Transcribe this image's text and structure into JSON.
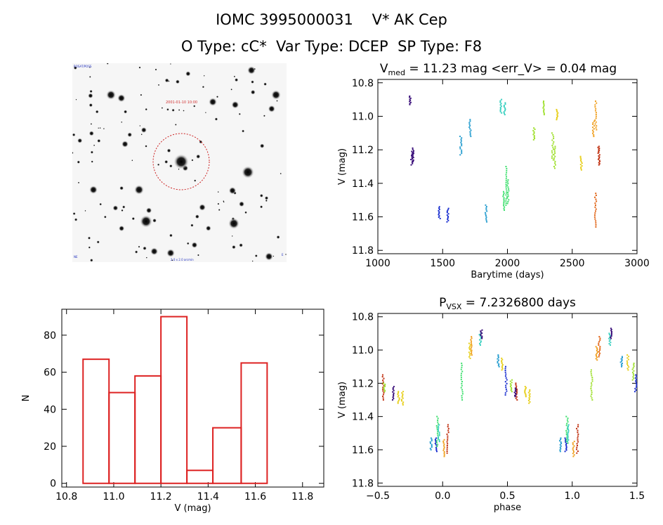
{
  "header": {
    "line1": "IOMC 3995000031    V* AK Cep",
    "line2": "O Type: cC*  Var Type: DCEP  SP Type: F8"
  },
  "thumbnail": {
    "red_label": "2001-01-10 10:00",
    "blue_tl": "ROSAT/POSS",
    "blue_bottom": "2.0 x 2.0 arcmin",
    "blue_bl": "NE",
    "compass_n": "N",
    "compass_e": "E"
  },
  "colors": {
    "axes": "#000000",
    "hist": "#dd2222",
    "circle": "#cc2222",
    "palette": [
      "#3a0f7a",
      "#1a2fd0",
      "#2a9fd0",
      "#3ad0c0",
      "#40e070",
      "#a0e030",
      "#e8d020",
      "#f0a020",
      "#e06010",
      "#c03010"
    ]
  },
  "chart_data": [
    {
      "type": "scatter",
      "id": "lightcurve",
      "title_main": "V",
      "title_sub": "med",
      "title_rest": " = 11.23 mag <err_V> = 0.04 mag",
      "xlabel": "Barytime (days)",
      "ylabel": "V (mag)",
      "xlim": [
        1000,
        3000
      ],
      "ylim": [
        11.82,
        10.78
      ],
      "xticks": [
        1000,
        1500,
        2000,
        2500,
        3000
      ],
      "xticklabels": [
        "1000",
        "1500",
        "2000",
        "2500",
        "3000"
      ],
      "yticks": [
        10.8,
        11.0,
        11.2,
        11.4,
        11.6,
        11.8
      ],
      "yticklabels": [
        "10.8",
        "11.0",
        "11.2",
        "11.4",
        "11.6",
        "11.8"
      ],
      "groups": [
        {
          "x": 1248,
          "ymin": 10.88,
          "ymax": 10.93,
          "c": 0
        },
        {
          "x": 1262,
          "ymin": 11.21,
          "ymax": 11.29,
          "c": 0
        },
        {
          "x": 1272,
          "ymin": 11.19,
          "ymax": 11.27,
          "c": 0
        },
        {
          "x": 1475,
          "ymin": 11.54,
          "ymax": 11.61,
          "c": 1
        },
        {
          "x": 1540,
          "ymin": 11.55,
          "ymax": 11.63,
          "c": 1
        },
        {
          "x": 1640,
          "ymin": 11.12,
          "ymax": 11.23,
          "c": 2
        },
        {
          "x": 1712,
          "ymin": 11.02,
          "ymax": 11.12,
          "c": 2
        },
        {
          "x": 1835,
          "ymin": 11.53,
          "ymax": 11.63,
          "c": 2
        },
        {
          "x": 1950,
          "ymin": 10.9,
          "ymax": 10.98,
          "c": 3
        },
        {
          "x": 1978,
          "ymin": 10.92,
          "ymax": 10.99,
          "c": 3
        },
        {
          "x": 1970,
          "ymin": 11.45,
          "ymax": 11.56,
          "c": 4
        },
        {
          "x": 1995,
          "ymin": 11.3,
          "ymax": 11.53,
          "c": 4
        },
        {
          "x": 2005,
          "ymin": 11.38,
          "ymax": 11.52,
          "c": 4
        },
        {
          "x": 2205,
          "ymin": 11.07,
          "ymax": 11.14,
          "c": 5
        },
        {
          "x": 2278,
          "ymin": 10.91,
          "ymax": 10.99,
          "c": 5
        },
        {
          "x": 2350,
          "ymin": 11.1,
          "ymax": 11.26,
          "c": 5
        },
        {
          "x": 2365,
          "ymin": 11.18,
          "ymax": 11.31,
          "c": 5
        },
        {
          "x": 2385,
          "ymin": 10.96,
          "ymax": 11.02,
          "c": 6
        },
        {
          "x": 2570,
          "ymin": 11.24,
          "ymax": 11.32,
          "c": 6
        },
        {
          "x": 2665,
          "ymin": 11.03,
          "ymax": 11.12,
          "c": 7
        },
        {
          "x": 2682,
          "ymin": 10.91,
          "ymax": 11.08,
          "c": 7
        },
        {
          "x": 2680,
          "ymin": 11.46,
          "ymax": 11.66,
          "c": 8
        },
        {
          "x": 2705,
          "ymin": 11.18,
          "ymax": 11.22,
          "c": 9
        },
        {
          "x": 2708,
          "ymin": 11.23,
          "ymax": 11.29,
          "c": 9
        }
      ]
    },
    {
      "type": "bar",
      "id": "histogram",
      "xlabel": "V (mag)",
      "ylabel": "N",
      "xlim": [
        10.78,
        11.89
      ],
      "ylim": [
        -2,
        94
      ],
      "xticks": [
        10.8,
        11.0,
        11.2,
        11.4,
        11.6,
        11.8
      ],
      "xticklabels": [
        "10.8",
        "11.0",
        "11.2",
        "11.4",
        "11.6",
        "11.8"
      ],
      "yticks": [
        0,
        20,
        40,
        60,
        80
      ],
      "yticklabels": [
        "0",
        "20",
        "40",
        "60",
        "80"
      ],
      "bin_edges": [
        10.87,
        10.98,
        11.09,
        11.2,
        11.31,
        11.42,
        11.54,
        11.65
      ],
      "values": [
        67,
        49,
        58,
        90,
        7,
        30,
        65
      ]
    },
    {
      "type": "scatter",
      "id": "phased",
      "title_main": "P",
      "title_sub": "VSX",
      "title_rest": " = 7.2326800 days",
      "xlabel": "phase",
      "ylabel": "V (mag)",
      "xlim": [
        -0.5,
        1.5
      ],
      "ylim": [
        11.82,
        10.78
      ],
      "xticks": [
        -0.5,
        0.0,
        0.5,
        1.0,
        1.5
      ],
      "xticklabels": [
        "−0.5",
        "0.0",
        "0.5",
        "1.0",
        "1.5"
      ],
      "yticks": [
        10.8,
        11.0,
        11.2,
        11.4,
        11.6,
        11.8
      ],
      "yticklabels": [
        "10.8",
        "11.0",
        "11.2",
        "11.4",
        "11.6",
        "11.8"
      ],
      "groups": [
        {
          "x": -0.46,
          "ymin": 11.15,
          "ymax": 11.3,
          "c": 9
        },
        {
          "x": -0.45,
          "ymin": 11.2,
          "ymax": 11.25,
          "c": 5
        },
        {
          "x": -0.38,
          "ymin": 11.22,
          "ymax": 11.3,
          "c": 0
        },
        {
          "x": -0.34,
          "ymin": 11.25,
          "ymax": 11.32,
          "c": 6
        },
        {
          "x": -0.31,
          "ymin": 11.25,
          "ymax": 11.33,
          "c": 6
        },
        {
          "x": -0.09,
          "ymin": 11.53,
          "ymax": 11.6,
          "c": 2
        },
        {
          "x": -0.05,
          "ymin": 11.53,
          "ymax": 11.61,
          "c": 1
        },
        {
          "x": -0.04,
          "ymin": 11.4,
          "ymax": 11.58,
          "c": 4
        },
        {
          "x": -0.03,
          "ymin": 11.45,
          "ymax": 11.55,
          "c": 3
        },
        {
          "x": 0.01,
          "ymin": 11.54,
          "ymax": 11.64,
          "c": 7
        },
        {
          "x": 0.04,
          "ymin": 11.45,
          "ymax": 11.62,
          "c": 9
        },
        {
          "x": 0.15,
          "ymin": 11.08,
          "ymax": 11.3,
          "c": 4
        },
        {
          "x": 0.21,
          "ymin": 10.96,
          "ymax": 11.05,
          "c": 6
        },
        {
          "x": 0.22,
          "ymin": 10.92,
          "ymax": 11.03,
          "c": 7
        },
        {
          "x": 0.29,
          "ymin": 10.9,
          "ymax": 10.97,
          "c": 3
        },
        {
          "x": 0.3,
          "ymin": 10.88,
          "ymax": 10.93,
          "c": 0
        },
        {
          "x": 0.43,
          "ymin": 11.03,
          "ymax": 11.1,
          "c": 2
        },
        {
          "x": 0.46,
          "ymin": 11.05,
          "ymax": 11.12,
          "c": 6
        },
        {
          "x": 0.49,
          "ymin": 11.1,
          "ymax": 11.27,
          "c": 1
        },
        {
          "x": 0.53,
          "ymin": 11.18,
          "ymax": 11.25,
          "c": 5
        },
        {
          "x": 0.57,
          "ymin": 11.2,
          "ymax": 11.3,
          "c": 9
        },
        {
          "x": 0.56,
          "ymin": 11.23,
          "ymax": 11.28,
          "c": 0
        },
        {
          "x": 0.64,
          "ymin": 11.22,
          "ymax": 11.28,
          "c": 6
        },
        {
          "x": 0.67,
          "ymin": 11.24,
          "ymax": 11.32,
          "c": 6
        },
        {
          "x": 0.91,
          "ymin": 11.53,
          "ymax": 11.61,
          "c": 2
        },
        {
          "x": 0.95,
          "ymin": 11.53,
          "ymax": 11.61,
          "c": 1
        },
        {
          "x": 0.96,
          "ymin": 11.4,
          "ymax": 11.56,
          "c": 4
        },
        {
          "x": 0.97,
          "ymin": 11.45,
          "ymax": 11.55,
          "c": 3
        },
        {
          "x": 1.01,
          "ymin": 11.55,
          "ymax": 11.64,
          "c": 7
        },
        {
          "x": 1.04,
          "ymin": 11.45,
          "ymax": 11.62,
          "c": 9
        },
        {
          "x": 1.15,
          "ymin": 11.12,
          "ymax": 11.3,
          "c": 5
        },
        {
          "x": 1.19,
          "ymin": 10.98,
          "ymax": 11.06,
          "c": 7
        },
        {
          "x": 1.21,
          "ymin": 10.92,
          "ymax": 11.04,
          "c": 8
        },
        {
          "x": 1.29,
          "ymin": 10.9,
          "ymax": 10.97,
          "c": 3
        },
        {
          "x": 1.3,
          "ymin": 10.87,
          "ymax": 10.93,
          "c": 0
        },
        {
          "x": 1.38,
          "ymin": 11.04,
          "ymax": 11.1,
          "c": 2
        },
        {
          "x": 1.43,
          "ymin": 11.03,
          "ymax": 11.12,
          "c": 6
        },
        {
          "x": 1.47,
          "ymin": 11.08,
          "ymax": 11.18,
          "c": 5
        },
        {
          "x": 1.49,
          "ymin": 11.15,
          "ymax": 11.25,
          "c": 1
        }
      ]
    }
  ]
}
